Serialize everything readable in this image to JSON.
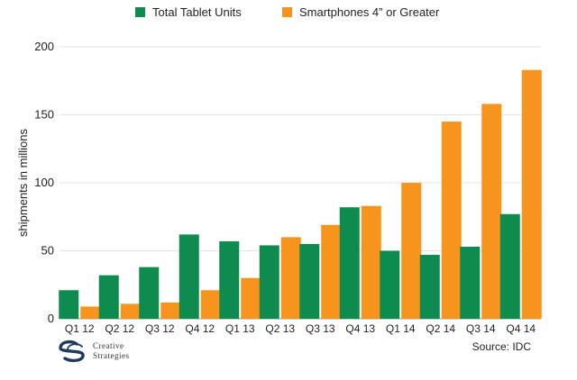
{
  "chart_data": {
    "type": "bar",
    "categories": [
      "Q1 12",
      "Q2 12",
      "Q3 12",
      "Q4 12",
      "Q1 13",
      "Q2 13",
      "Q3 13",
      "Q4 13",
      "Q1 14",
      "Q2 14",
      "Q3 14",
      "Q4 14"
    ],
    "series": [
      {
        "name": "Total Tablet Units",
        "color": "#0e8c4f",
        "values": [
          21,
          32,
          38,
          62,
          57,
          54,
          55,
          82,
          50,
          47,
          53,
          77
        ]
      },
      {
        "name": "Smartphones 4” or Greater",
        "color": "#f7941d",
        "values": [
          9,
          11,
          12,
          21,
          30,
          60,
          69,
          83,
          100,
          145,
          158,
          183
        ]
      }
    ],
    "title": "",
    "xlabel": "",
    "ylabel": "shipments in millions",
    "ylim": [
      0,
      200
    ],
    "yticks": [
      0,
      50,
      100,
      150,
      200
    ],
    "grid": true,
    "legend": "top"
  },
  "source": "Source: IDC",
  "logo": {
    "line1": "Creative",
    "line2": "Strategies"
  }
}
